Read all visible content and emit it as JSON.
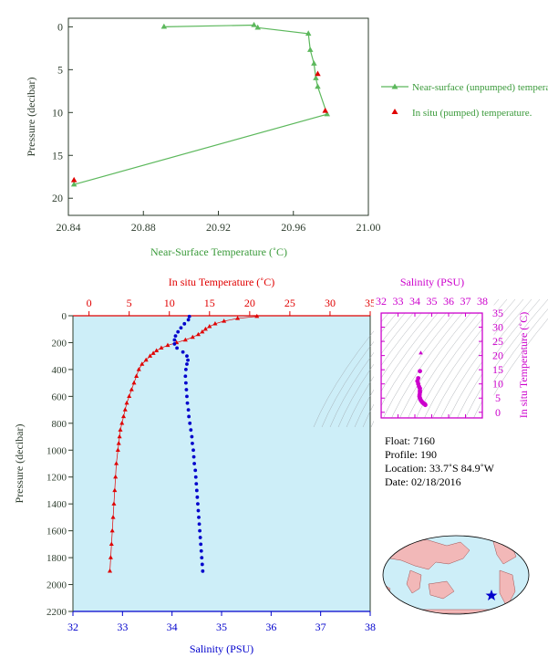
{
  "colors": {
    "near_surface": "#5cb85c",
    "in_situ": "#e00000",
    "salinity": "#0000cc",
    "magenta": "#cc00cc",
    "plot_bg": "#cdeef8",
    "axis_dark": "#2e3d2e"
  },
  "chart_data": [
    {
      "type": "line",
      "xlabel": "Near-Surface Temperature (˚C)",
      "ylabel": "Pressure (decibar)",
      "xlim": [
        20.84,
        21.0
      ],
      "ylim": [
        22,
        -1
      ],
      "xticks": [
        "20.84",
        "20.88",
        "20.92",
        "20.96",
        "21.00"
      ],
      "yticks": [
        "0",
        "5",
        "10",
        "15",
        "20"
      ],
      "series": [
        {
          "name": "Near-surface (unpumped) temperature.",
          "x": [
            20.891,
            20.939,
            20.941,
            20.968,
            20.969,
            20.971,
            20.972,
            20.973,
            20.978,
            20.843
          ],
          "y": [
            0.0,
            -0.2,
            0.1,
            0.8,
            2.7,
            4.3,
            6.0,
            7.0,
            10.2,
            18.4
          ]
        },
        {
          "name": "In situ (pumped) temperature.",
          "x": [
            20.973,
            20.977,
            20.843
          ],
          "y": [
            5.5,
            9.8,
            17.9
          ]
        }
      ],
      "legend": "right"
    },
    {
      "type": "line",
      "x_top_label": "In situ Temperature (˚C)",
      "x_bottom_label": "Salinity (PSU)",
      "ylabel": "Pressure (decibar)",
      "temp_lim": [
        -2,
        35
      ],
      "sal_lim": [
        32,
        38
      ],
      "ylim": [
        2200,
        0
      ],
      "temp_ticks": [
        "0",
        "5",
        "10",
        "15",
        "20",
        "25",
        "30",
        "35"
      ],
      "sal_ticks": [
        "32",
        "33",
        "34",
        "35",
        "36",
        "37",
        "38"
      ],
      "yticks": [
        "0",
        "200",
        "400",
        "600",
        "800",
        "1000",
        "1200",
        "1400",
        "1600",
        "1800",
        "2000",
        "2200"
      ],
      "temperature": {
        "p": [
          5,
          20,
          40,
          60,
          80,
          100,
          120,
          140,
          160,
          180,
          200,
          220,
          240,
          260,
          280,
          300,
          330,
          360,
          400,
          450,
          500,
          550,
          600,
          650,
          700,
          750,
          800,
          850,
          900,
          950,
          1000,
          1100,
          1200,
          1300,
          1400,
          1500,
          1600,
          1700,
          1800,
          1900
        ],
        "t": [
          20.9,
          18.5,
          16.8,
          15.7,
          15.0,
          14.5,
          14.1,
          13.6,
          12.9,
          12.0,
          10.9,
          9.8,
          9.0,
          8.4,
          8.0,
          7.6,
          7.1,
          6.6,
          6.2,
          5.9,
          5.6,
          5.3,
          5.0,
          4.7,
          4.5,
          4.3,
          4.1,
          3.9,
          3.8,
          3.7,
          3.6,
          3.4,
          3.3,
          3.2,
          3.1,
          3.0,
          2.9,
          2.8,
          2.7,
          2.6
        ]
      },
      "salinity": {
        "p": [
          5,
          30,
          60,
          90,
          120,
          150,
          180,
          210,
          240,
          270,
          300,
          330,
          360,
          400,
          450,
          500,
          550,
          600,
          650,
          700,
          750,
          800,
          850,
          900,
          950,
          1000,
          1050,
          1100,
          1150,
          1200,
          1250,
          1300,
          1350,
          1400,
          1450,
          1500,
          1550,
          1600,
          1650,
          1700,
          1750,
          1800,
          1850,
          1900
        ],
        "s": [
          34.35,
          34.33,
          34.25,
          34.18,
          34.12,
          34.07,
          34.05,
          34.05,
          34.1,
          34.22,
          34.3,
          34.32,
          34.3,
          34.28,
          34.27,
          34.28,
          34.29,
          34.3,
          34.31,
          34.33,
          34.34,
          34.36,
          34.38,
          34.4,
          34.41,
          34.43,
          34.44,
          34.45,
          34.47,
          34.48,
          34.49,
          34.5,
          34.51,
          34.52,
          34.53,
          34.54,
          34.55,
          34.56,
          34.57,
          34.58,
          34.59,
          34.6,
          34.61,
          34.62
        ]
      }
    },
    {
      "type": "scatter",
      "title": "Salinity (PSU)",
      "ylabel": "In situ Temperature (˚C)",
      "xlim": [
        32,
        38
      ],
      "ylim": [
        -2,
        35
      ],
      "xticks": [
        "32",
        "33",
        "34",
        "35",
        "36",
        "37",
        "38"
      ],
      "yticks": [
        "0",
        "5",
        "10",
        "15",
        "20",
        "25",
        "30",
        "35"
      ],
      "points": [
        [
          34.35,
          20.9
        ],
        [
          34.3,
          14.5
        ],
        [
          34.2,
          12.0
        ],
        [
          34.15,
          11.0
        ],
        [
          34.2,
          10.0
        ],
        [
          34.25,
          9.0
        ],
        [
          34.3,
          8.4
        ],
        [
          34.3,
          7.6
        ],
        [
          34.3,
          7.0
        ],
        [
          34.28,
          6.2
        ],
        [
          34.27,
          5.6
        ],
        [
          34.3,
          5.0
        ],
        [
          34.33,
          4.5
        ],
        [
          34.37,
          4.1
        ],
        [
          34.42,
          3.7
        ],
        [
          34.46,
          3.4
        ],
        [
          34.5,
          3.2
        ],
        [
          34.55,
          3.0
        ],
        [
          34.6,
          2.8
        ],
        [
          34.62,
          2.6
        ]
      ]
    }
  ],
  "info": {
    "float": "Float:  7160",
    "profile": "Profile:  190",
    "location": "Location:  33.7˚S  84.9˚W",
    "date": "Date:  02/18/2016"
  }
}
